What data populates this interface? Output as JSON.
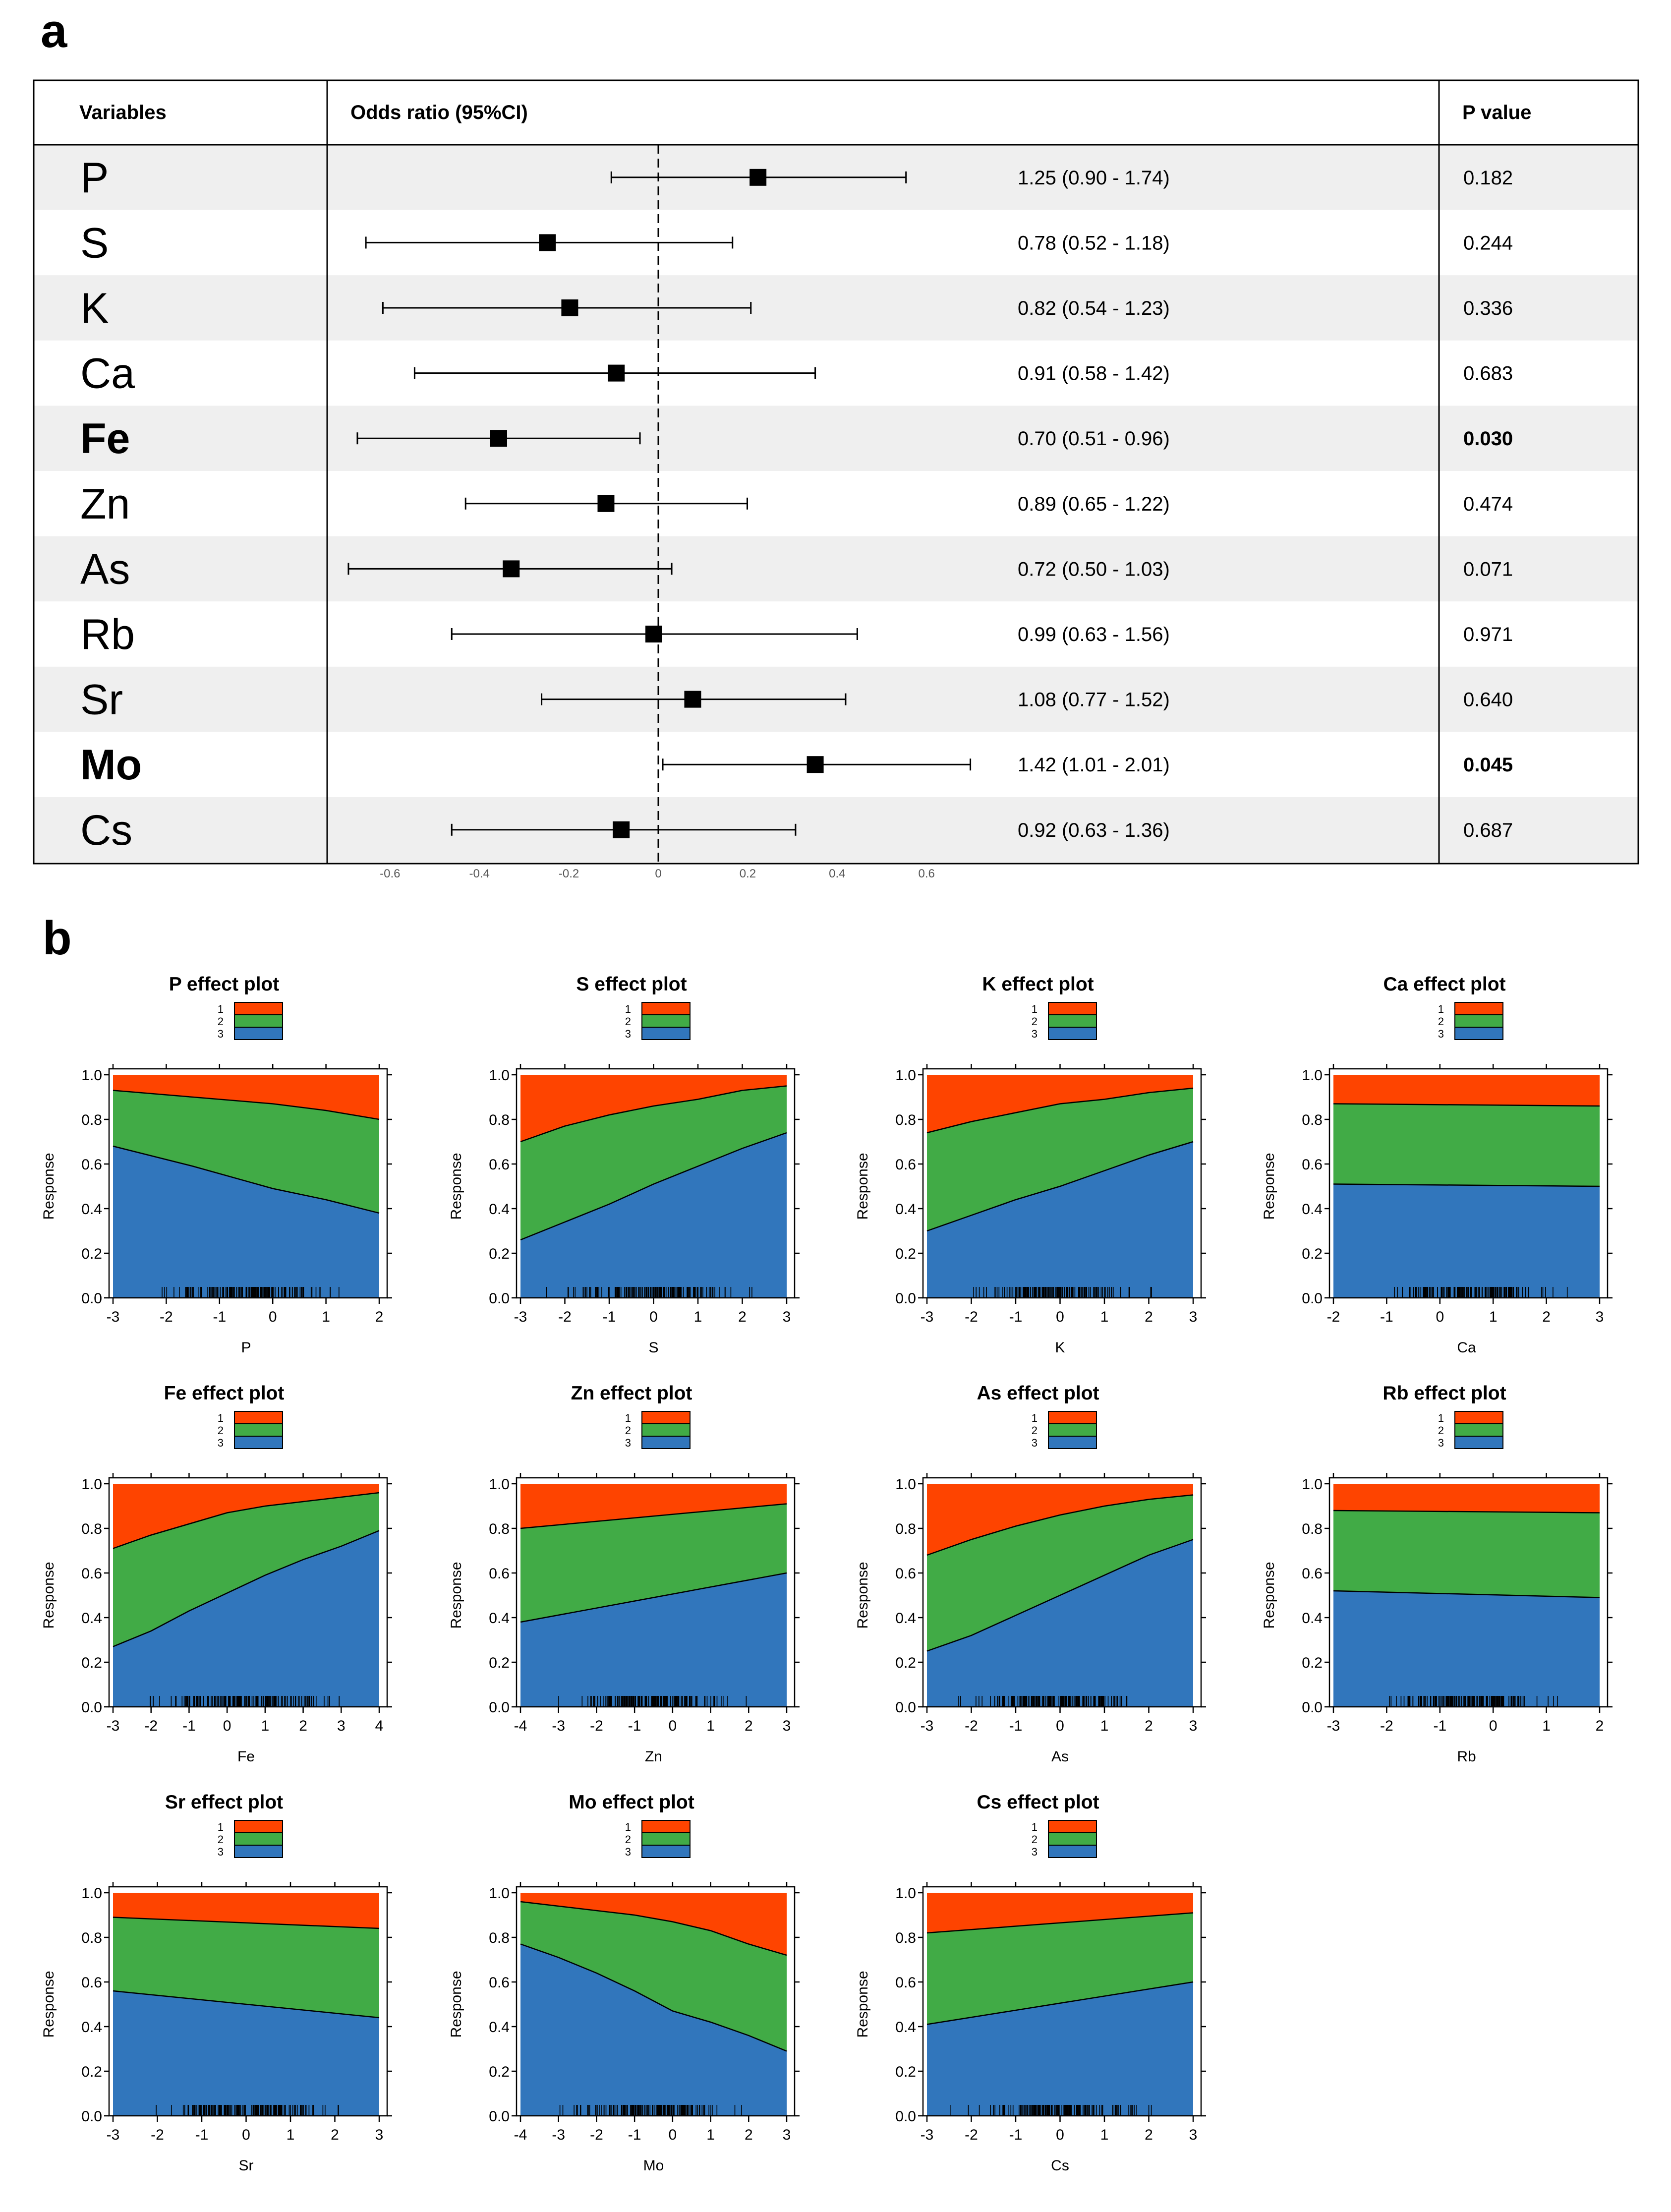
{
  "panel_a_label": "a",
  "panel_b_label": "b",
  "colors": {
    "row_shade": "#efefef",
    "cat1": "#fe4400",
    "cat2": "#41ab46",
    "cat3": "#3176bc",
    "ink": "#000000"
  },
  "chart_data": [
    {
      "type": "forest",
      "headers": {
        "variables": "Variables",
        "odds_ratio": "Odds ratio (95%CI)",
        "p_value": "P value"
      },
      "x_range": [
        -0.6,
        0.6
      ],
      "x_ticks": [
        -0.6,
        -0.4,
        -0.2,
        0,
        0.2,
        0.4,
        0.6
      ],
      "x_tick_labels": [
        "-0.6",
        "-0.4",
        "-0.2",
        "0",
        "0.2",
        "0.4",
        "0.6"
      ],
      "reference_line": 0,
      "rows": [
        {
          "variable": "P",
          "log_or": 0.223,
          "ci_low": -0.105,
          "ci_high": 0.554,
          "or_text": "1.25 (0.90 - 1.74)",
          "p": "0.182",
          "bold": false
        },
        {
          "variable": "S",
          "log_or": -0.248,
          "ci_low": -0.654,
          "ci_high": 0.166,
          "or_text": "0.78 (0.52 - 1.18)",
          "p": "0.244",
          "bold": false
        },
        {
          "variable": "K",
          "log_or": -0.198,
          "ci_low": -0.616,
          "ci_high": 0.207,
          "or_text": "0.82 (0.54 - 1.23)",
          "p": "0.336",
          "bold": false
        },
        {
          "variable": "Ca",
          "log_or": -0.094,
          "ci_low": -0.545,
          "ci_high": 0.351,
          "or_text": "0.91 (0.58 - 1.42)",
          "p": "0.683",
          "bold": false
        },
        {
          "variable": "Fe",
          "log_or": -0.357,
          "ci_low": -0.673,
          "ci_high": -0.041,
          "or_text": "0.70 (0.51 - 0.96)",
          "p": "0.030",
          "bold": true
        },
        {
          "variable": "Zn",
          "log_or": -0.117,
          "ci_low": -0.431,
          "ci_high": 0.199,
          "or_text": "0.89 (0.65 - 1.22)",
          "p": "0.474",
          "bold": false
        },
        {
          "variable": "As",
          "log_or": -0.329,
          "ci_low": -0.693,
          "ci_high": 0.03,
          "or_text": "0.72 (0.50 - 1.03)",
          "p": "0.071",
          "bold": false
        },
        {
          "variable": "Rb",
          "log_or": -0.01,
          "ci_low": -0.462,
          "ci_high": 0.445,
          "or_text": "0.99 (0.63 - 1.56)",
          "p": "0.971",
          "bold": false
        },
        {
          "variable": "Sr",
          "log_or": 0.077,
          "ci_low": -0.261,
          "ci_high": 0.419,
          "or_text": "1.08 (0.77 - 1.52)",
          "p": "0.640",
          "bold": false
        },
        {
          "variable": "Mo",
          "log_or": 0.351,
          "ci_low": 0.01,
          "ci_high": 0.698,
          "or_text": "1.42 (1.01 - 2.01)",
          "p": "0.045",
          "bold": true
        },
        {
          "variable": "Cs",
          "log_or": -0.083,
          "ci_low": -0.462,
          "ci_high": 0.307,
          "or_text": "0.92 (0.63 - 1.36)",
          "p": "0.687",
          "bold": false
        }
      ]
    },
    {
      "type": "area",
      "plots": [
        {
          "name": "P",
          "title": "P effect plot",
          "xlabel": "P",
          "ylabel": "Response",
          "xlim": [
            -3,
            2
          ],
          "x": [
            -3,
            -1.5,
            0,
            1,
            2
          ],
          "cum3": [
            0.68,
            0.59,
            0.49,
            0.44,
            0.38
          ],
          "cum2": [
            0.93,
            0.9,
            0.87,
            0.84,
            0.8
          ]
        },
        {
          "name": "S",
          "title": "S effect plot",
          "xlabel": "S",
          "ylabel": "Response",
          "xlim": [
            -3,
            3
          ],
          "x": [
            -3,
            -2,
            -1,
            0,
            1,
            2,
            3
          ],
          "cum3": [
            0.26,
            0.34,
            0.42,
            0.51,
            0.59,
            0.67,
            0.74
          ],
          "cum2": [
            0.7,
            0.77,
            0.82,
            0.86,
            0.89,
            0.93,
            0.95
          ]
        },
        {
          "name": "K",
          "title": "K effect plot",
          "xlabel": "K",
          "ylabel": "Response",
          "xlim": [
            -3,
            3
          ],
          "x": [
            -3,
            -2,
            -1,
            0,
            1,
            2,
            3
          ],
          "cum3": [
            0.3,
            0.37,
            0.44,
            0.5,
            0.57,
            0.64,
            0.7
          ],
          "cum2": [
            0.74,
            0.79,
            0.83,
            0.87,
            0.89,
            0.92,
            0.94
          ]
        },
        {
          "name": "Ca",
          "title": "Ca effect plot",
          "xlabel": "Ca",
          "ylabel": "Response",
          "xlim": [
            -2,
            3
          ],
          "x": [
            -2,
            3
          ],
          "cum3": [
            0.51,
            0.5
          ],
          "cum2": [
            0.87,
            0.86
          ]
        },
        {
          "name": "Fe",
          "title": "Fe effect plot",
          "xlabel": "Fe",
          "ylabel": "Response",
          "xlim": [
            -3,
            4
          ],
          "x": [
            -3,
            -2,
            -1,
            0,
            1,
            2,
            3,
            4
          ],
          "cum3": [
            0.27,
            0.34,
            0.43,
            0.51,
            0.59,
            0.66,
            0.72,
            0.79
          ],
          "cum2": [
            0.71,
            0.77,
            0.82,
            0.87,
            0.9,
            0.92,
            0.94,
            0.96
          ]
        },
        {
          "name": "Zn",
          "title": "Zn effect plot",
          "xlabel": "Zn",
          "ylabel": "Response",
          "xlim": [
            -4,
            3
          ],
          "x": [
            -4,
            3
          ],
          "cum3": [
            0.38,
            0.6
          ],
          "cum2": [
            0.8,
            0.91
          ]
        },
        {
          "name": "As",
          "title": "As effect plot",
          "xlabel": "As",
          "ylabel": "Response",
          "xlim": [
            -3,
            3
          ],
          "x": [
            -3,
            -2,
            -1,
            0,
            1,
            2,
            3
          ],
          "cum3": [
            0.25,
            0.32,
            0.41,
            0.5,
            0.59,
            0.68,
            0.75
          ],
          "cum2": [
            0.68,
            0.75,
            0.81,
            0.86,
            0.9,
            0.93,
            0.95
          ]
        },
        {
          "name": "Rb",
          "title": "Rb effect plot",
          "xlabel": "Rb",
          "ylabel": "Response",
          "xlim": [
            -3,
            2
          ],
          "x": [
            -3,
            2
          ],
          "cum3": [
            0.52,
            0.49
          ],
          "cum2": [
            0.88,
            0.87
          ]
        },
        {
          "name": "Sr",
          "title": "Sr effect plot",
          "xlabel": "Sr",
          "ylabel": "Response",
          "xlim": [
            -3,
            3
          ],
          "x": [
            -3,
            3
          ],
          "cum3": [
            0.56,
            0.44
          ],
          "cum2": [
            0.89,
            0.84
          ]
        },
        {
          "name": "Mo",
          "title": "Mo effect plot",
          "xlabel": "Mo",
          "ylabel": "Response",
          "xlim": [
            -4,
            3
          ],
          "x": [
            -4,
            -3,
            -2,
            -1,
            0,
            1,
            2,
            3
          ],
          "cum3": [
            0.77,
            0.71,
            0.64,
            0.56,
            0.47,
            0.42,
            0.36,
            0.29
          ],
          "cum2": [
            0.96,
            0.94,
            0.92,
            0.9,
            0.87,
            0.83,
            0.77,
            0.72
          ]
        },
        {
          "name": "Cs",
          "title": "Cs effect plot",
          "xlabel": "Cs",
          "ylabel": "Response",
          "xlim": [
            -3,
            3
          ],
          "x": [
            -3,
            3
          ],
          "cum3": [
            0.41,
            0.6
          ],
          "cum2": [
            0.82,
            0.91
          ]
        }
      ],
      "legend_labels": [
        "1",
        "2",
        "3"
      ],
      "ylim": [
        0,
        1
      ],
      "y_ticks": [
        0,
        0.2,
        0.4,
        0.6,
        0.8,
        1
      ],
      "y_tick_labels": [
        "0.0",
        "0.2",
        "0.4",
        "0.6",
        "0.8",
        "1.0"
      ]
    }
  ]
}
